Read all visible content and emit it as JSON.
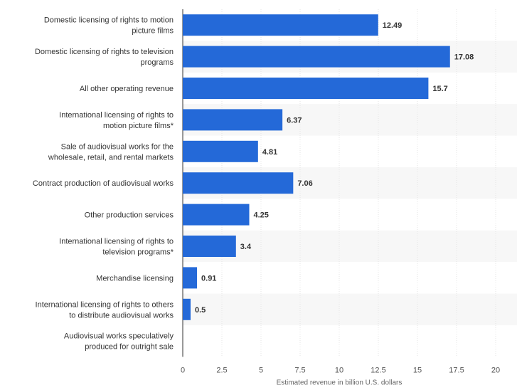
{
  "chart_data": {
    "type": "bar",
    "orientation": "horizontal",
    "categories": [
      [
        "Domestic licensing of rights to motion",
        "picture films"
      ],
      [
        "Domestic licensing of rights to television",
        "programs"
      ],
      [
        "All other operating revenue"
      ],
      [
        "International licensing of rights to",
        "motion picture films*"
      ],
      [
        "Sale of audiovisual works for the",
        "wholesale, retail, and rental markets"
      ],
      [
        "Contract production of audiovisual works"
      ],
      [
        "Other production services"
      ],
      [
        "International licensing of rights to",
        "television programs*"
      ],
      [
        "Merchandise licensing"
      ],
      [
        "International licensing of rights to others",
        "to distribute audiovisual works"
      ],
      [
        "Audiovisual works speculatively",
        "produced for outright sale"
      ]
    ],
    "values": [
      12.49,
      17.08,
      15.7,
      6.37,
      4.81,
      7.06,
      4.25,
      3.4,
      0.91,
      0.5,
      null
    ],
    "value_labels": [
      "12.49",
      "17.08",
      "15.7",
      "6.37",
      "4.81",
      "7.06",
      "4.25",
      "3.4",
      "0.91",
      "0.5",
      ""
    ],
    "xlim": [
      0,
      20
    ],
    "ticks": [
      0,
      2.5,
      5,
      7.5,
      10,
      12.5,
      15,
      17.5,
      20
    ],
    "tick_labels": [
      "0",
      "2.5",
      "5",
      "7.5",
      "10",
      "12.5",
      "15",
      "17.5",
      "20"
    ],
    "title": "",
    "xlabel": "Estimated revenue in billion U.S. dollars",
    "ylabel": "",
    "grid": true,
    "bar_color": "#2469d8",
    "band_color": "#f7f7f7"
  }
}
